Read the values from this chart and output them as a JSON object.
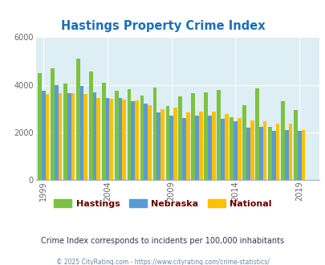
{
  "title": "Hastings Property Crime Index",
  "title_color": "#1a6fba",
  "years": [
    1999,
    2000,
    2001,
    2002,
    2003,
    2004,
    2005,
    2006,
    2007,
    2008,
    2009,
    2010,
    2011,
    2012,
    2013,
    2014,
    2015,
    2016,
    2017,
    2018,
    2019,
    2020
  ],
  "hastings": [
    4500,
    4700,
    4050,
    5100,
    4550,
    4100,
    3750,
    3820,
    3550,
    3900,
    3100,
    3500,
    3650,
    3700,
    3800,
    2650,
    3150,
    3850,
    2250,
    3300,
    2950,
    0
  ],
  "nebraska": [
    3750,
    4000,
    3650,
    3950,
    3700,
    3450,
    3460,
    3300,
    3220,
    2850,
    2720,
    2600,
    2700,
    2720,
    2560,
    2480,
    2200,
    2250,
    2080,
    2100,
    2060,
    0
  ],
  "national": [
    3620,
    3650,
    3650,
    3630,
    3440,
    3420,
    3380,
    3330,
    3160,
    2970,
    3050,
    2840,
    2890,
    2860,
    2760,
    2590,
    2500,
    2460,
    2380,
    2370,
    2100,
    0
  ],
  "hastings_color": "#7dc242",
  "nebraska_color": "#5b9bd5",
  "national_color": "#ffc000",
  "bg_color": "#ddeef4",
  "ylim": [
    0,
    6000
  ],
  "yticks": [
    0,
    2000,
    4000,
    6000
  ],
  "xlabel_ticks": [
    1999,
    2004,
    2009,
    2014,
    2019
  ],
  "legend_labels": [
    "Hastings",
    "Nebraska",
    "National"
  ],
  "legend_text_color": "#660000",
  "note": "Crime Index corresponds to incidents per 100,000 inhabitants",
  "footer": "© 2025 CityRating.com - https://www.cityrating.com/crime-statistics/",
  "note_color": "#333355",
  "footer_color": "#6688aa"
}
